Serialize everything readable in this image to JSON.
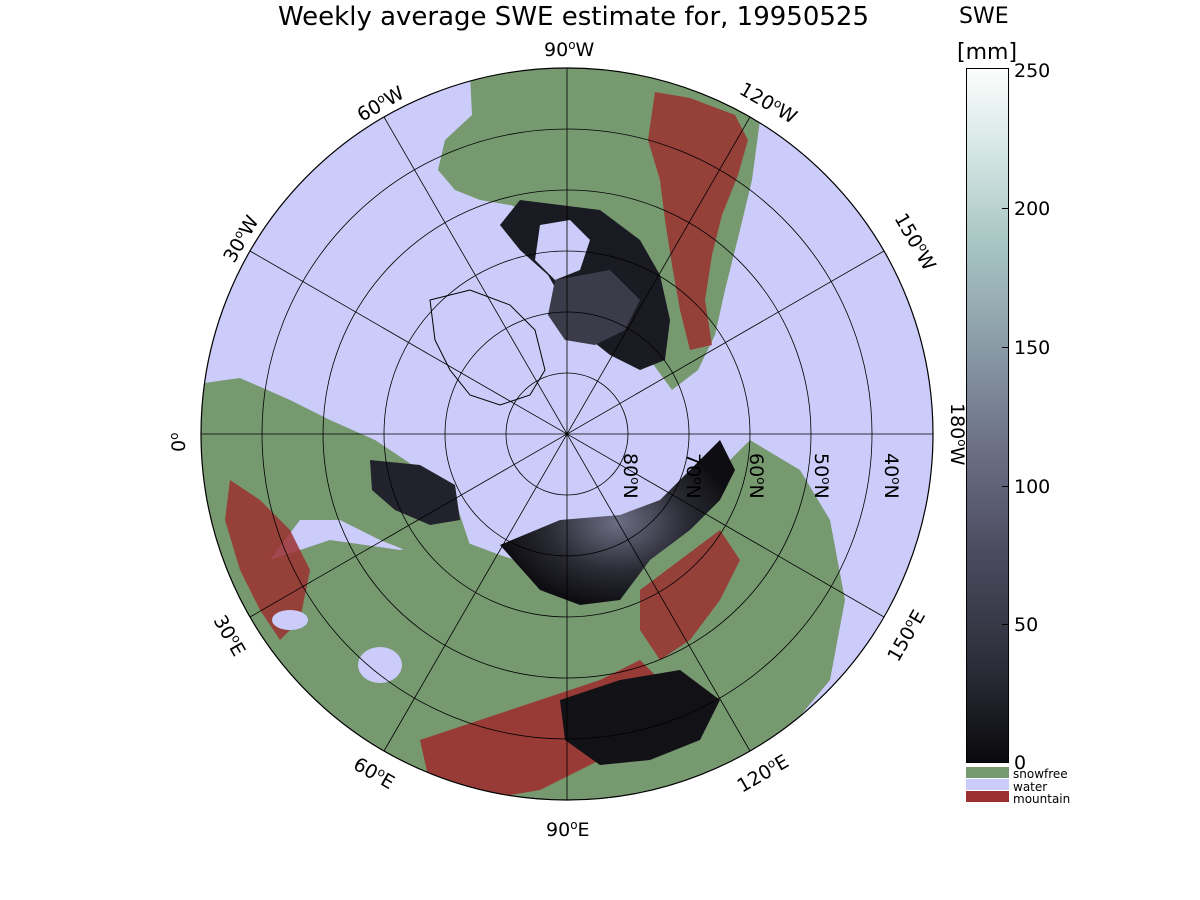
{
  "title": "Weekly average SWE estimate for, 19950525",
  "colorbar": {
    "title_line1": "SWE",
    "title_line2": "[mm]",
    "ticks": [
      "250",
      "200",
      "150",
      "100",
      "50",
      "0"
    ],
    "colors": {
      "low": "#0a0a0d",
      "mid": "#6b6f86",
      "high": "#fcfdfd"
    }
  },
  "legend": [
    {
      "label": "snowfree",
      "color": "#779970"
    },
    {
      "label": "water",
      "color": "#ccccfa"
    },
    {
      "label": "mountain",
      "color": "#9b3030"
    }
  ],
  "longitude_labels": {
    "n90w": "90",
    "n60w": "60",
    "n120w": "120",
    "n30w": "30",
    "n150w": "150",
    "n0": "0",
    "n180w": "180",
    "n30e": "30",
    "n150e": "150",
    "n60e": "60",
    "n120e": "120",
    "n90e": "90",
    "deg": "o",
    "w": "W",
    "e": "E"
  },
  "latitude_labels": {
    "l80": "80",
    "l70": "70",
    "l60": "60",
    "l50": "50",
    "l40": "40",
    "deg": "o",
    "n": "N"
  }
}
